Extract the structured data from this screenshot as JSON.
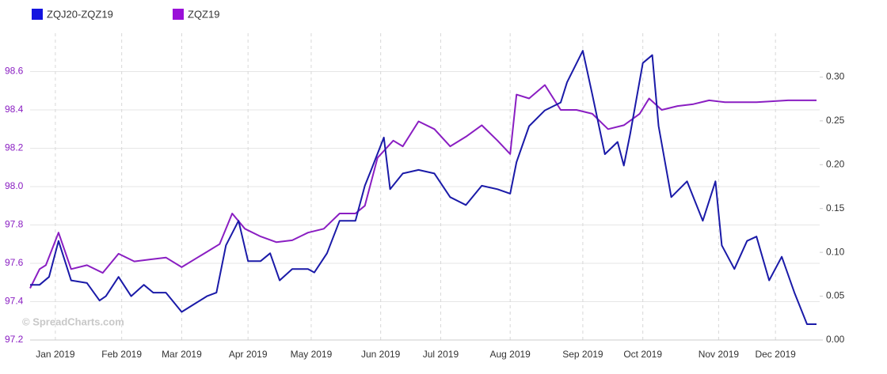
{
  "chart_data": {
    "type": "line",
    "watermark": "© SpreadCharts.com",
    "xlim": [
      0,
      250
    ],
    "xticks": [
      {
        "value": 8,
        "label": "Jan 2019"
      },
      {
        "value": 29,
        "label": "Feb 2019"
      },
      {
        "value": 48,
        "label": "Mar 2019"
      },
      {
        "value": 69,
        "label": "Apr 2019"
      },
      {
        "value": 89,
        "label": "May 2019"
      },
      {
        "value": 111,
        "label": "Jun 2019"
      },
      {
        "value": 130,
        "label": "Jul 2019"
      },
      {
        "value": 152,
        "label": "Aug 2019"
      },
      {
        "value": 175,
        "label": "Sep 2019"
      },
      {
        "value": 194,
        "label": "Oct 2019"
      },
      {
        "value": 218,
        "label": "Nov 2019"
      },
      {
        "value": 236,
        "label": "Dec 2019"
      }
    ],
    "ylim": [
      97.2,
      98.8
    ],
    "yticks": [
      97.2,
      97.4,
      97.6,
      97.8,
      {
        "value": 98,
        "label": "98.0"
      },
      98.2,
      98.4,
      98.6
    ],
    "y2lim": [
      0,
      0.35
    ],
    "y2ticks": [
      {
        "value": 0,
        "label": "0.00"
      },
      0.05,
      {
        "value": 0.1,
        "label": "0.10"
      },
      0.15,
      {
        "value": 0.2,
        "label": "0.20"
      },
      0.25,
      {
        "value": 0.3,
        "label": "0.30"
      }
    ],
    "grid": true,
    "legend": "top-left",
    "series": [
      {
        "name": "ZQJ20-ZQZ19",
        "color": "#1a1aa8",
        "legend_color": "#1414e0",
        "axis": "y2",
        "x": [
          0,
          3,
          6,
          9,
          13,
          18,
          22,
          24,
          28,
          32,
          36,
          39,
          43,
          48,
          52,
          56,
          59,
          62,
          66,
          69,
          73,
          76,
          79,
          83,
          88,
          90,
          94,
          98,
          103,
          106,
          108,
          112,
          114,
          118,
          123,
          128,
          133,
          138,
          143,
          148,
          152,
          154,
          158,
          163,
          168,
          170,
          175,
          178,
          182,
          186,
          188,
          190,
          194,
          197,
          199,
          203,
          208,
          213,
          217,
          219,
          223,
          227,
          230,
          234,
          238,
          242,
          246,
          249
        ],
        "values": [
          0.063,
          0.063,
          0.072,
          0.113,
          0.068,
          0.065,
          0.045,
          0.05,
          0.072,
          0.05,
          0.063,
          0.054,
          0.054,
          0.032,
          0.041,
          0.05,
          0.054,
          0.108,
          0.136,
          0.09,
          0.09,
          0.099,
          0.068,
          0.081,
          0.081,
          0.077,
          0.099,
          0.136,
          0.136,
          0.176,
          0.194,
          0.231,
          0.172,
          0.19,
          0.194,
          0.19,
          0.163,
          0.154,
          0.176,
          0.172,
          0.167,
          0.203,
          0.244,
          0.262,
          0.271,
          0.294,
          0.33,
          0.28,
          0.212,
          0.226,
          0.199,
          0.235,
          0.316,
          0.325,
          0.244,
          0.163,
          0.181,
          0.136,
          0.181,
          0.108,
          0.081,
          0.113,
          0.118,
          0.068,
          0.095,
          0.054,
          0.018,
          0.018
        ]
      },
      {
        "name": "ZQZ19",
        "color": "#8a1ec2",
        "legend_color": "#9a10d8",
        "axis": "y",
        "x": [
          0,
          3,
          5,
          9,
          13,
          18,
          23,
          28,
          33,
          38,
          43,
          48,
          53,
          56,
          60,
          64,
          68,
          73,
          78,
          83,
          88,
          93,
          98,
          103,
          106,
          110,
          115,
          118,
          123,
          128,
          133,
          138,
          143,
          148,
          152,
          154,
          158,
          163,
          168,
          173,
          178,
          183,
          188,
          193,
          196,
          200,
          205,
          210,
          215,
          220,
          230,
          240,
          249
        ],
        "values": [
          97.47,
          97.57,
          97.59,
          97.76,
          97.57,
          97.59,
          97.55,
          97.65,
          97.61,
          97.62,
          97.63,
          97.58,
          97.63,
          97.66,
          97.7,
          97.86,
          97.78,
          97.74,
          97.71,
          97.72,
          97.76,
          97.78,
          97.86,
          97.86,
          97.9,
          98.15,
          98.24,
          98.21,
          98.34,
          98.3,
          98.21,
          98.26,
          98.32,
          98.24,
          98.17,
          98.48,
          98.46,
          98.53,
          98.4,
          98.4,
          98.38,
          98.3,
          98.32,
          98.38,
          98.46,
          98.4,
          98.42,
          98.43,
          98.45,
          98.44,
          98.44,
          98.45,
          98.45
        ]
      }
    ]
  }
}
